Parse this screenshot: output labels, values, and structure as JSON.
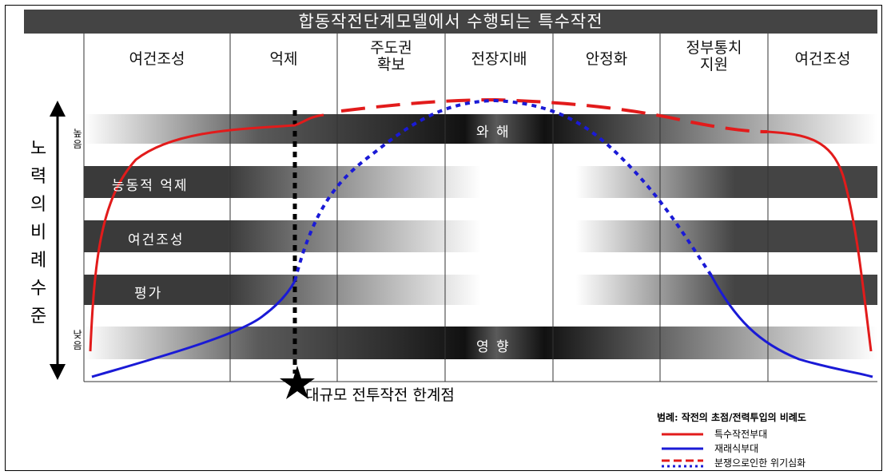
{
  "title": "합동작전단계모델에서 수행되는 특수작전",
  "phases": [
    "여건조성",
    "억제",
    "주도권\n확보",
    "전장지배",
    "안정화",
    "정부통치\n지원",
    "여건조성"
  ],
  "bands": {
    "top": "와 해",
    "active_deterrence": "능동적 억제",
    "shaping": "여건조성",
    "assessment": "평가",
    "bottom": "영 향"
  },
  "y_axis": {
    "label_chars": [
      "노",
      "력",
      "의",
      "비",
      "례",
      "수",
      "준"
    ],
    "high": [
      "높",
      "음"
    ],
    "low": [
      "낮",
      "음"
    ]
  },
  "threshold_label": "대규모 전투작전 한계점",
  "legend": {
    "title": "범례: 작전의 초점/전력투입의 비례도",
    "items": [
      {
        "label": "특수작전부대",
        "color": "#e21b1b",
        "style": "solid"
      },
      {
        "label": "재래식부대",
        "color": "#1a1ad6",
        "style": "solid"
      },
      {
        "label": "분쟁으로인한 위기심화",
        "color": "#e21b1b",
        "style": "dashed"
      }
    ]
  },
  "colors": {
    "title_bg": "#444444",
    "sof_line": "#e21b1b",
    "conventional_line": "#1a1ad6"
  }
}
